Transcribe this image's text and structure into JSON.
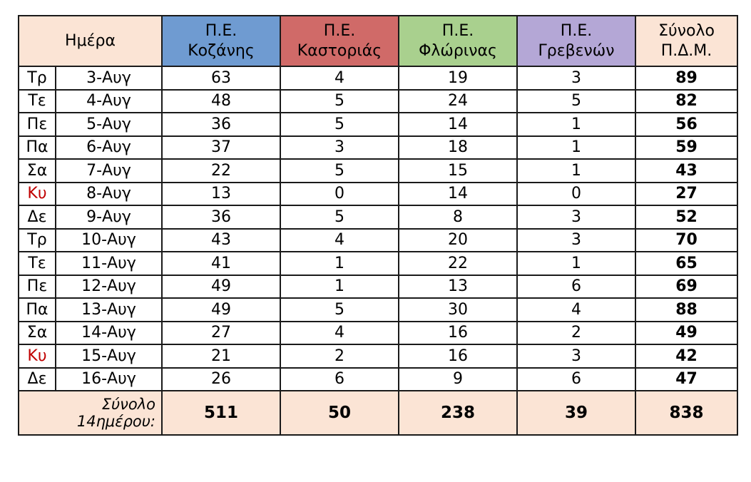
{
  "header": {
    "day": "Ημέρα",
    "columns": [
      {
        "line1": "Π.Ε.",
        "line2": "Κοζάνης"
      },
      {
        "line1": "Π.Ε.",
        "line2": "Καστοριάς"
      },
      {
        "line1": "Π.Ε.",
        "line2": "Φλώρινας"
      },
      {
        "line1": "Π.Ε.",
        "line2": "Γρεβενών"
      }
    ],
    "total": {
      "line1": "Σύνολο",
      "line2": "Π.Δ.Μ."
    }
  },
  "colors": {
    "kozani": "#6f9bd1",
    "kastoria": "#d06a68",
    "florina": "#a9d08e",
    "grevena": "#b4a7d6",
    "accent": "#fbe4d5",
    "sunday": "#c00000"
  },
  "rows": [
    {
      "weekday": "Τρ",
      "date": "3-Αυγ",
      "kozani": "63",
      "kastoria": "4",
      "florina": "19",
      "grevena": "3",
      "total": "89",
      "sunday": false
    },
    {
      "weekday": "Τε",
      "date": "4-Αυγ",
      "kozani": "48",
      "kastoria": "5",
      "florina": "24",
      "grevena": "5",
      "total": "82",
      "sunday": false
    },
    {
      "weekday": "Πε",
      "date": "5-Αυγ",
      "kozani": "36",
      "kastoria": "5",
      "florina": "14",
      "grevena": "1",
      "total": "56",
      "sunday": false
    },
    {
      "weekday": "Πα",
      "date": "6-Αυγ",
      "kozani": "37",
      "kastoria": "3",
      "florina": "18",
      "grevena": "1",
      "total": "59",
      "sunday": false
    },
    {
      "weekday": "Σα",
      "date": "7-Αυγ",
      "kozani": "22",
      "kastoria": "5",
      "florina": "15",
      "grevena": "1",
      "total": "43",
      "sunday": false
    },
    {
      "weekday": "Κυ",
      "date": "8-Αυγ",
      "kozani": "13",
      "kastoria": "0",
      "florina": "14",
      "grevena": "0",
      "total": "27",
      "sunday": true
    },
    {
      "weekday": "Δε",
      "date": "9-Αυγ",
      "kozani": "36",
      "kastoria": "5",
      "florina": "8",
      "grevena": "3",
      "total": "52",
      "sunday": false
    },
    {
      "weekday": "Τρ",
      "date": "10-Αυγ",
      "kozani": "43",
      "kastoria": "4",
      "florina": "20",
      "grevena": "3",
      "total": "70",
      "sunday": false
    },
    {
      "weekday": "Τε",
      "date": "11-Αυγ",
      "kozani": "41",
      "kastoria": "1",
      "florina": "22",
      "grevena": "1",
      "total": "65",
      "sunday": false
    },
    {
      "weekday": "Πε",
      "date": "12-Αυγ",
      "kozani": "49",
      "kastoria": "1",
      "florina": "13",
      "grevena": "6",
      "total": "69",
      "sunday": false
    },
    {
      "weekday": "Πα",
      "date": "13-Αυγ",
      "kozani": "49",
      "kastoria": "5",
      "florina": "30",
      "grevena": "4",
      "total": "88",
      "sunday": false
    },
    {
      "weekday": "Σα",
      "date": "14-Αυγ",
      "kozani": "27",
      "kastoria": "4",
      "florina": "16",
      "grevena": "2",
      "total": "49",
      "sunday": false
    },
    {
      "weekday": "Κυ",
      "date": "15-Αυγ",
      "kozani": "21",
      "kastoria": "2",
      "florina": "16",
      "grevena": "3",
      "total": "42",
      "sunday": true
    },
    {
      "weekday": "Δε",
      "date": "16-Αυγ",
      "kozani": "26",
      "kastoria": "6",
      "florina": "9",
      "grevena": "6",
      "total": "47",
      "sunday": false
    }
  ],
  "footer": {
    "label_line1": "Σύνολο",
    "label_line2": "14ημέρου:",
    "kozani": "511",
    "kastoria": "50",
    "florina": "238",
    "grevena": "39",
    "total": "838"
  }
}
